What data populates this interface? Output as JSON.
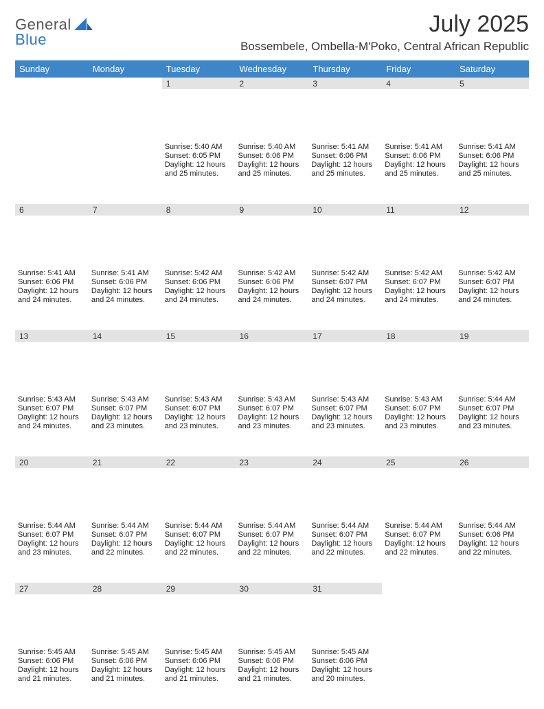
{
  "brand": {
    "top": "General",
    "bottom": "Blue"
  },
  "title": "July 2025",
  "location": "Bossembele, Ombella-M'Poko, Central African Republic",
  "header_bg": "#3f86c8",
  "daynum_bg": "#e3e3e3",
  "accent_rule": "#3f86c8",
  "text_color": "#222222",
  "dayHeaders": [
    "Sunday",
    "Monday",
    "Tuesday",
    "Wednesday",
    "Thursday",
    "Friday",
    "Saturday"
  ],
  "weeks": [
    [
      null,
      null,
      {
        "n": "1",
        "sr": "Sunrise: 5:40 AM",
        "ss": "Sunset: 6:05 PM",
        "d1": "Daylight: 12 hours",
        "d2": "and 25 minutes."
      },
      {
        "n": "2",
        "sr": "Sunrise: 5:40 AM",
        "ss": "Sunset: 6:06 PM",
        "d1": "Daylight: 12 hours",
        "d2": "and 25 minutes."
      },
      {
        "n": "3",
        "sr": "Sunrise: 5:41 AM",
        "ss": "Sunset: 6:06 PM",
        "d1": "Daylight: 12 hours",
        "d2": "and 25 minutes."
      },
      {
        "n": "4",
        "sr": "Sunrise: 5:41 AM",
        "ss": "Sunset: 6:06 PM",
        "d1": "Daylight: 12 hours",
        "d2": "and 25 minutes."
      },
      {
        "n": "5",
        "sr": "Sunrise: 5:41 AM",
        "ss": "Sunset: 6:06 PM",
        "d1": "Daylight: 12 hours",
        "d2": "and 25 minutes."
      }
    ],
    [
      {
        "n": "6",
        "sr": "Sunrise: 5:41 AM",
        "ss": "Sunset: 6:06 PM",
        "d1": "Daylight: 12 hours",
        "d2": "and 24 minutes."
      },
      {
        "n": "7",
        "sr": "Sunrise: 5:41 AM",
        "ss": "Sunset: 6:06 PM",
        "d1": "Daylight: 12 hours",
        "d2": "and 24 minutes."
      },
      {
        "n": "8",
        "sr": "Sunrise: 5:42 AM",
        "ss": "Sunset: 6:06 PM",
        "d1": "Daylight: 12 hours",
        "d2": "and 24 minutes."
      },
      {
        "n": "9",
        "sr": "Sunrise: 5:42 AM",
        "ss": "Sunset: 6:06 PM",
        "d1": "Daylight: 12 hours",
        "d2": "and 24 minutes."
      },
      {
        "n": "10",
        "sr": "Sunrise: 5:42 AM",
        "ss": "Sunset: 6:07 PM",
        "d1": "Daylight: 12 hours",
        "d2": "and 24 minutes."
      },
      {
        "n": "11",
        "sr": "Sunrise: 5:42 AM",
        "ss": "Sunset: 6:07 PM",
        "d1": "Daylight: 12 hours",
        "d2": "and 24 minutes."
      },
      {
        "n": "12",
        "sr": "Sunrise: 5:42 AM",
        "ss": "Sunset: 6:07 PM",
        "d1": "Daylight: 12 hours",
        "d2": "and 24 minutes."
      }
    ],
    [
      {
        "n": "13",
        "sr": "Sunrise: 5:43 AM",
        "ss": "Sunset: 6:07 PM",
        "d1": "Daylight: 12 hours",
        "d2": "and 24 minutes."
      },
      {
        "n": "14",
        "sr": "Sunrise: 5:43 AM",
        "ss": "Sunset: 6:07 PM",
        "d1": "Daylight: 12 hours",
        "d2": "and 23 minutes."
      },
      {
        "n": "15",
        "sr": "Sunrise: 5:43 AM",
        "ss": "Sunset: 6:07 PM",
        "d1": "Daylight: 12 hours",
        "d2": "and 23 minutes."
      },
      {
        "n": "16",
        "sr": "Sunrise: 5:43 AM",
        "ss": "Sunset: 6:07 PM",
        "d1": "Daylight: 12 hours",
        "d2": "and 23 minutes."
      },
      {
        "n": "17",
        "sr": "Sunrise: 5:43 AM",
        "ss": "Sunset: 6:07 PM",
        "d1": "Daylight: 12 hours",
        "d2": "and 23 minutes."
      },
      {
        "n": "18",
        "sr": "Sunrise: 5:43 AM",
        "ss": "Sunset: 6:07 PM",
        "d1": "Daylight: 12 hours",
        "d2": "and 23 minutes."
      },
      {
        "n": "19",
        "sr": "Sunrise: 5:44 AM",
        "ss": "Sunset: 6:07 PM",
        "d1": "Daylight: 12 hours",
        "d2": "and 23 minutes."
      }
    ],
    [
      {
        "n": "20",
        "sr": "Sunrise: 5:44 AM",
        "ss": "Sunset: 6:07 PM",
        "d1": "Daylight: 12 hours",
        "d2": "and 23 minutes."
      },
      {
        "n": "21",
        "sr": "Sunrise: 5:44 AM",
        "ss": "Sunset: 6:07 PM",
        "d1": "Daylight: 12 hours",
        "d2": "and 22 minutes."
      },
      {
        "n": "22",
        "sr": "Sunrise: 5:44 AM",
        "ss": "Sunset: 6:07 PM",
        "d1": "Daylight: 12 hours",
        "d2": "and 22 minutes."
      },
      {
        "n": "23",
        "sr": "Sunrise: 5:44 AM",
        "ss": "Sunset: 6:07 PM",
        "d1": "Daylight: 12 hours",
        "d2": "and 22 minutes."
      },
      {
        "n": "24",
        "sr": "Sunrise: 5:44 AM",
        "ss": "Sunset: 6:07 PM",
        "d1": "Daylight: 12 hours",
        "d2": "and 22 minutes."
      },
      {
        "n": "25",
        "sr": "Sunrise: 5:44 AM",
        "ss": "Sunset: 6:07 PM",
        "d1": "Daylight: 12 hours",
        "d2": "and 22 minutes."
      },
      {
        "n": "26",
        "sr": "Sunrise: 5:44 AM",
        "ss": "Sunset: 6:06 PM",
        "d1": "Daylight: 12 hours",
        "d2": "and 22 minutes."
      }
    ],
    [
      {
        "n": "27",
        "sr": "Sunrise: 5:45 AM",
        "ss": "Sunset: 6:06 PM",
        "d1": "Daylight: 12 hours",
        "d2": "and 21 minutes."
      },
      {
        "n": "28",
        "sr": "Sunrise: 5:45 AM",
        "ss": "Sunset: 6:06 PM",
        "d1": "Daylight: 12 hours",
        "d2": "and 21 minutes."
      },
      {
        "n": "29",
        "sr": "Sunrise: 5:45 AM",
        "ss": "Sunset: 6:06 PM",
        "d1": "Daylight: 12 hours",
        "d2": "and 21 minutes."
      },
      {
        "n": "30",
        "sr": "Sunrise: 5:45 AM",
        "ss": "Sunset: 6:06 PM",
        "d1": "Daylight: 12 hours",
        "d2": "and 21 minutes."
      },
      {
        "n": "31",
        "sr": "Sunrise: 5:45 AM",
        "ss": "Sunset: 6:06 PM",
        "d1": "Daylight: 12 hours",
        "d2": "and 20 minutes."
      },
      null,
      null
    ]
  ]
}
